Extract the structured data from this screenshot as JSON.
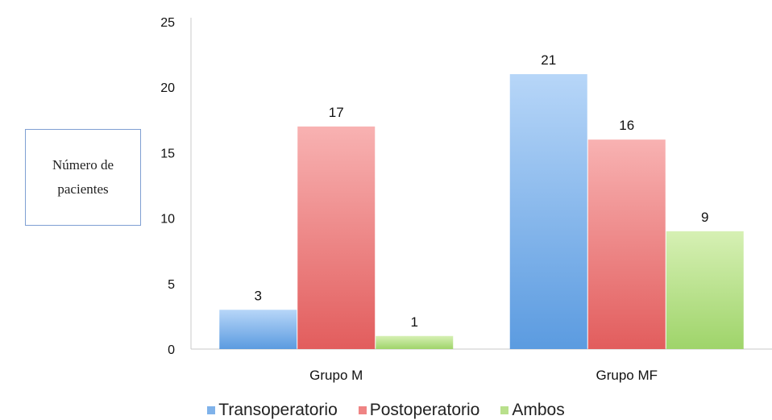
{
  "chart_data": {
    "type": "bar",
    "categories": [
      "Grupo M",
      "Grupo MF"
    ],
    "series": [
      {
        "name": "Transoperatorio",
        "values": [
          3,
          21
        ],
        "color": "#7fb2ea"
      },
      {
        "name": "Postoperatorio",
        "values": [
          17,
          16
        ],
        "color": "#ef8484"
      },
      {
        "name": "Ambos",
        "values": [
          1,
          9
        ],
        "color": "#b9e08c"
      }
    ],
    "ylabel": "Número de pacientes",
    "ylim": [
      0,
      25
    ],
    "yticks": [
      0,
      5,
      10,
      15,
      20,
      25
    ],
    "legend_position": "bottom",
    "data_labels": true,
    "grid": false
  }
}
